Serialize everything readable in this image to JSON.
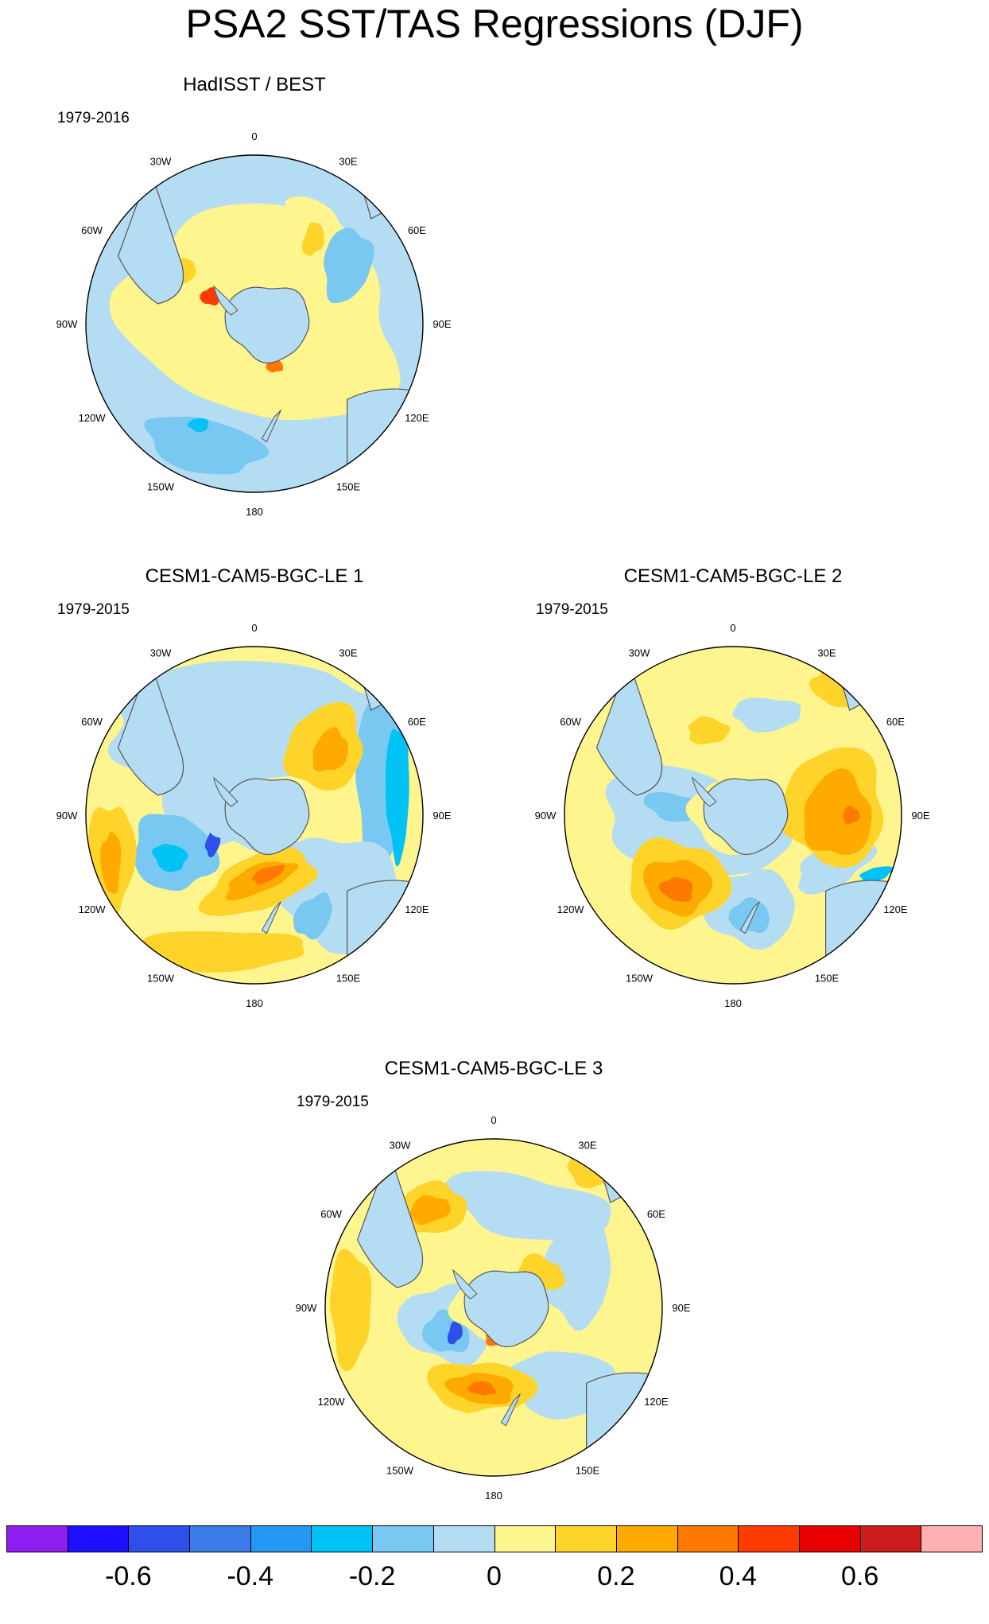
{
  "title": "PSA2 SST/TAS Regressions (DJF)",
  "panels": [
    {
      "title": "HadISST / BEST",
      "period": "1979-2016"
    },
    {
      "title": "CESM1-CAM5-BGC-LE 1",
      "period": "1979-2015"
    },
    {
      "title": "CESM1-CAM5-BGC-LE 2",
      "period": "1979-2015"
    },
    {
      "title": "CESM1-CAM5-BGC-LE 3",
      "period": "1979-2015"
    }
  ],
  "longitude_labels": [
    "0",
    "30E",
    "60E",
    "90E",
    "120E",
    "150E",
    "180",
    "150W",
    "120W",
    "90W",
    "60W",
    "30W"
  ],
  "colorbar": {
    "colors": [
      "#8e1ef0",
      "#1e10ff",
      "#2e50ea",
      "#3c7be8",
      "#2398f5",
      "#00c2f5",
      "#78c8f2",
      "#b4dcf2",
      "#fff58e",
      "#ffd42a",
      "#ffaa00",
      "#ff7800",
      "#ff3c00",
      "#e80000",
      "#cc1c1c",
      "#ffb0b0"
    ],
    "tick_values": [
      "-0.6",
      "-0.4",
      "-0.2",
      "0",
      "0.2",
      "0.4",
      "0.6"
    ]
  },
  "land_color": "#b4dcf2",
  "coast_color": "#555555"
}
